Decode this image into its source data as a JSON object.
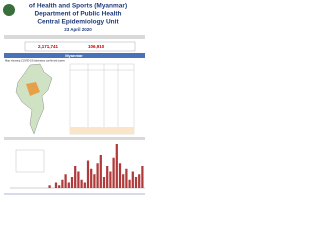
{
  "header": {
    "title_line1": "of Health and Sports (Myanmar)",
    "title_line2": "Department of Public Health",
    "title_line3": "Central Epidemiology Unit",
    "date": "23 April 2020"
  },
  "stats": {
    "left": "2,171,741",
    "right": "106,910"
  },
  "section": "Myanmar",
  "map_caption": "Map showing COVID-19 laboratory confirmed cases",
  "chart": {
    "values": [
      1,
      0,
      2,
      1,
      3,
      5,
      2,
      4,
      8,
      6,
      3,
      2,
      10,
      7,
      5,
      9,
      12,
      4,
      8,
      6,
      11,
      16,
      9,
      5,
      7,
      3,
      6,
      4,
      5,
      8
    ]
  }
}
